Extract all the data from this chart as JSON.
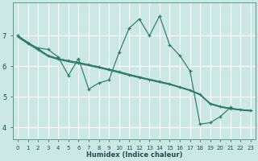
{
  "bg_color": "#cce8e4",
  "grid_color": "#ffffff",
  "line_color": "#2a7a6a",
  "xlabel": "Humidex (Indice chaleur)",
  "xlabel_fontsize": 6.0,
  "xlabel_color": "#1a5050",
  "xlim": [
    -0.5,
    23.5
  ],
  "ylim": [
    3.6,
    8.1
  ],
  "xtick_fontsize": 5.0,
  "ytick_fontsize": 6.0,
  "ytick_vals": [
    4,
    5,
    6,
    7
  ],
  "lw": 0.85,
  "line1_x": [
    0,
    1,
    2,
    3,
    4,
    5,
    6,
    7,
    8,
    9,
    10,
    11,
    12,
    13,
    14,
    15,
    16,
    17,
    18,
    19,
    20,
    21
  ],
  "line1_y": [
    7.0,
    6.75,
    6.6,
    6.55,
    6.3,
    5.7,
    6.25,
    5.25,
    5.45,
    5.55,
    6.45,
    7.25,
    7.55,
    7.0,
    7.65,
    6.7,
    6.35,
    5.85,
    4.1,
    4.15,
    4.35,
    4.65
  ],
  "line2_x": [
    0,
    1,
    2,
    3,
    4,
    5,
    6,
    7,
    8,
    9,
    10,
    11,
    12,
    13,
    14,
    15,
    16,
    17,
    18,
    19,
    20,
    21,
    22,
    23
  ],
  "line2_y": [
    7.0,
    6.78,
    6.57,
    6.35,
    6.25,
    6.18,
    6.12,
    6.05,
    5.98,
    5.9,
    5.82,
    5.73,
    5.65,
    5.57,
    5.5,
    5.42,
    5.32,
    5.22,
    5.08,
    4.78,
    4.68,
    4.62,
    4.58,
    4.55
  ],
  "line3_x": [
    0,
    1,
    2,
    3,
    4,
    5,
    6,
    7,
    8,
    9,
    10,
    11,
    12,
    13,
    14,
    15,
    16,
    17,
    18,
    19,
    20,
    21,
    22,
    23
  ],
  "line3_y": [
    7.0,
    6.78,
    6.57,
    6.35,
    6.25,
    6.18,
    6.12,
    6.05,
    5.98,
    5.9,
    5.82,
    5.73,
    5.65,
    5.57,
    5.5,
    5.42,
    5.32,
    5.22,
    5.08,
    4.78,
    4.68,
    4.62,
    4.58,
    4.55
  ],
  "line4_x": [
    0,
    1,
    2,
    3,
    4,
    5,
    6,
    7,
    8,
    9,
    10,
    11,
    12,
    13,
    14,
    15,
    16,
    17,
    18,
    19,
    20,
    21,
    22,
    23
  ],
  "line4_y": [
    6.95,
    6.74,
    6.53,
    6.32,
    6.22,
    6.15,
    6.09,
    6.02,
    5.95,
    5.87,
    5.79,
    5.7,
    5.62,
    5.55,
    5.47,
    5.4,
    5.3,
    5.2,
    5.06,
    4.76,
    4.66,
    4.6,
    4.56,
    4.53
  ]
}
